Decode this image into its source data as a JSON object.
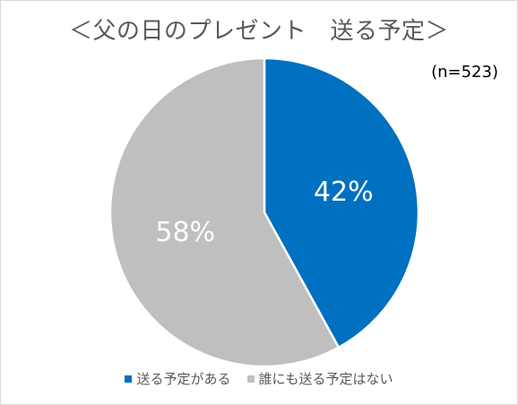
{
  "chart_data": {
    "type": "pie",
    "title": "＜父の日のプレゼント　送る予定＞",
    "note": "(n=523)",
    "slices": [
      {
        "name": "送る予定がある",
        "value": 42,
        "label": "42%",
        "color": "#0070c0"
      },
      {
        "name": "誰にも送る予定はない",
        "value": 58,
        "label": "58%",
        "color": "#bfbfbf"
      }
    ],
    "legend_position": "bottom"
  }
}
